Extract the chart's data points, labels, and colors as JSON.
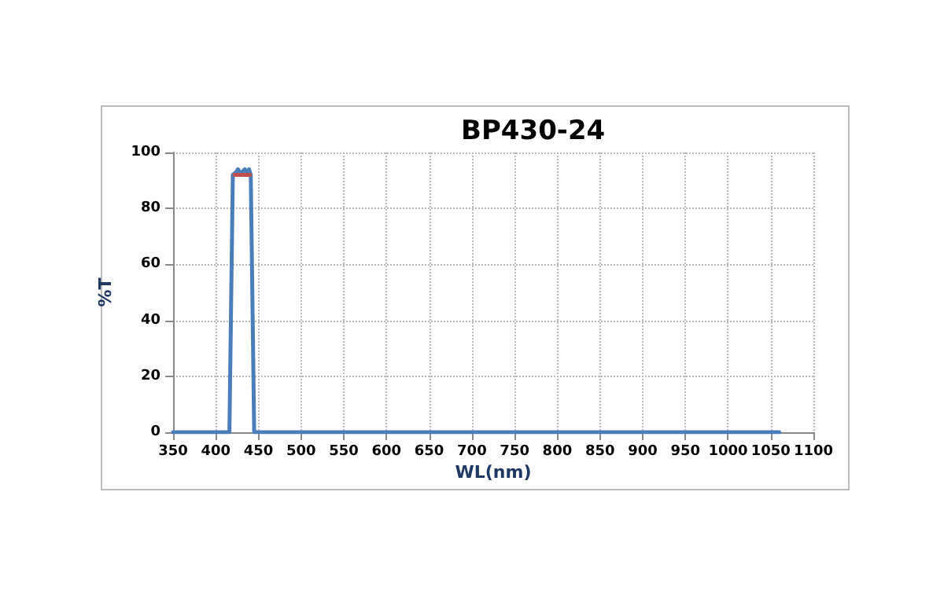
{
  "chart_data": {
    "type": "line",
    "title": "BP430-24",
    "xlabel": "WL(nm)",
    "ylabel": "%T",
    "xlim": [
      350,
      1100
    ],
    "xticks": [
      350,
      400,
      450,
      500,
      550,
      600,
      650,
      700,
      750,
      800,
      850,
      900,
      950,
      1000,
      1050,
      1100
    ],
    "ylim": [
      0,
      100
    ],
    "yticks": [
      0,
      20,
      40,
      60,
      80,
      100
    ],
    "grid": true,
    "marker": "none",
    "line_style": "solid",
    "series": [
      {
        "color": "#4a7ebb",
        "x": [
          350,
          416,
          420,
          424,
          426,
          428,
          431,
          434,
          436,
          439,
          441,
          445,
          1060
        ],
        "values": [
          0,
          0,
          92,
          93,
          94,
          93,
          93,
          94,
          93,
          94,
          92,
          0,
          0
        ]
      },
      {
        "color": "#c0504d",
        "x": [
          422,
          440
        ],
        "values": [
          92,
          92
        ]
      }
    ]
  }
}
